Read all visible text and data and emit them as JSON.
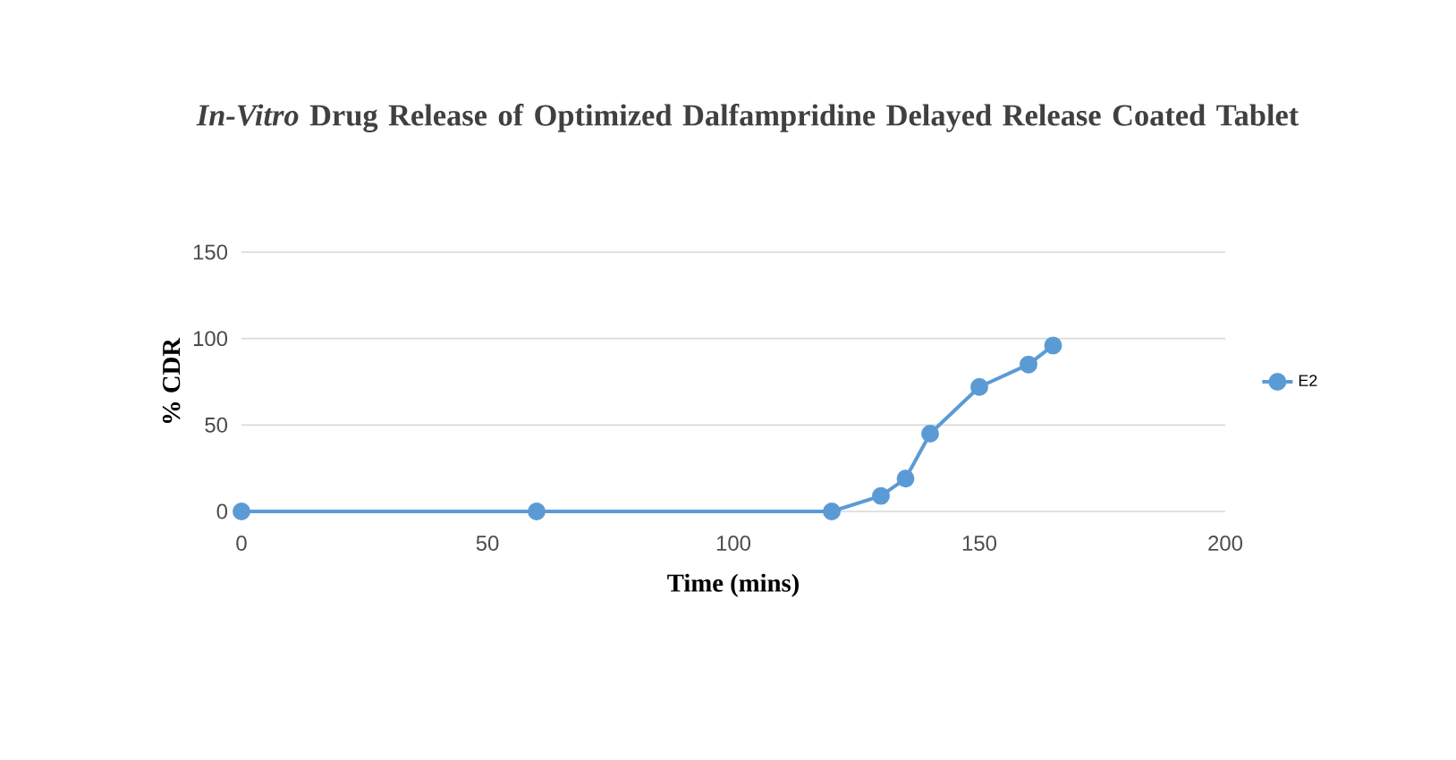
{
  "chart_data": {
    "type": "line",
    "title": "*In-Vitro* Drug Release of Optimized Dalfampridine Delayed Release Coated Tablet",
    "xlabel": "Time (mins)",
    "ylabel": "% CDR",
    "x": [
      0,
      60,
      120,
      130,
      135,
      140,
      150,
      160,
      165
    ],
    "series": [
      {
        "name": "E2",
        "color": "#5b9bd5",
        "values": [
          0,
          0,
          0,
          9,
          19,
          45,
          72,
          85,
          96
        ]
      }
    ],
    "xlim": [
      0,
      200
    ],
    "xticks": [
      0,
      50,
      100,
      150,
      200
    ],
    "ylim": [
      0,
      150
    ],
    "yticks": [
      0,
      50,
      100,
      150
    ],
    "grid": "y",
    "legend": "right",
    "marker": "circle",
    "line_style": "solid"
  }
}
